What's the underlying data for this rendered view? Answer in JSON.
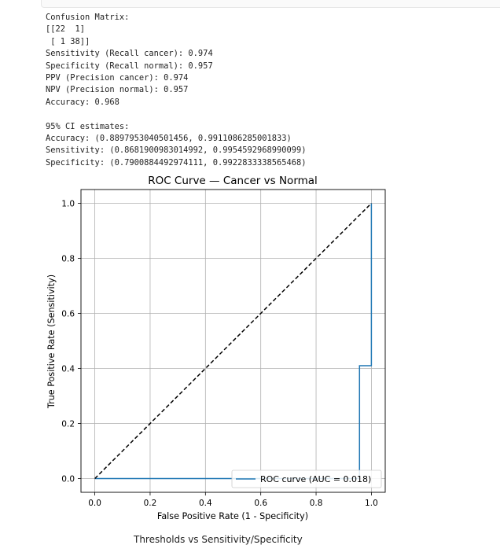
{
  "output": {
    "lines": [
      "Confusion Matrix:",
      "[[22  1]",
      " [ 1 38]]",
      "Sensitivity (Recall cancer): 0.974",
      "Specificity (Recall normal): 0.957",
      "PPV (Precision cancer): 0.974",
      "NPV (Precision normal): 0.957",
      "Accuracy: 0.968",
      "",
      "95% CI estimates:",
      "Accuracy: (0.8897953040501456, 0.9911086285001833)",
      "Sensitivity: (0.8681900983014992, 0.9954592968990099)",
      "Specificity: (0.7900884492974111, 0.9922833338565468)"
    ]
  },
  "chart_data": {
    "type": "line",
    "title": "ROC Curve — Cancer vs Normal",
    "xlabel": "False Positive Rate (1 - Specificity)",
    "ylabel": "True Positive Rate (Sensitivity)",
    "xlim": [
      -0.05,
      1.05
    ],
    "ylim": [
      -0.05,
      1.05
    ],
    "xticks": [
      "0.0",
      "0.2",
      "0.4",
      "0.6",
      "0.8",
      "1.0"
    ],
    "yticks": [
      "0.0",
      "0.2",
      "0.4",
      "0.6",
      "0.8",
      "1.0"
    ],
    "grid": true,
    "legend_position": "lower-right",
    "series": [
      {
        "name": "ROC curve (AUC = 0.018)",
        "color": "#1f77b4",
        "style": "solid",
        "x": [
          0.0,
          0.957,
          0.957,
          1.0,
          1.0
        ],
        "y": [
          0.0,
          0.0,
          0.41,
          0.41,
          1.0
        ]
      },
      {
        "color": "#000000",
        "style": "dashed",
        "x": [
          0.0,
          1.0
        ],
        "y": [
          0.0,
          1.0
        ]
      }
    ]
  },
  "cut_off_text": "Thresholds vs Sensitivity/Specificity"
}
